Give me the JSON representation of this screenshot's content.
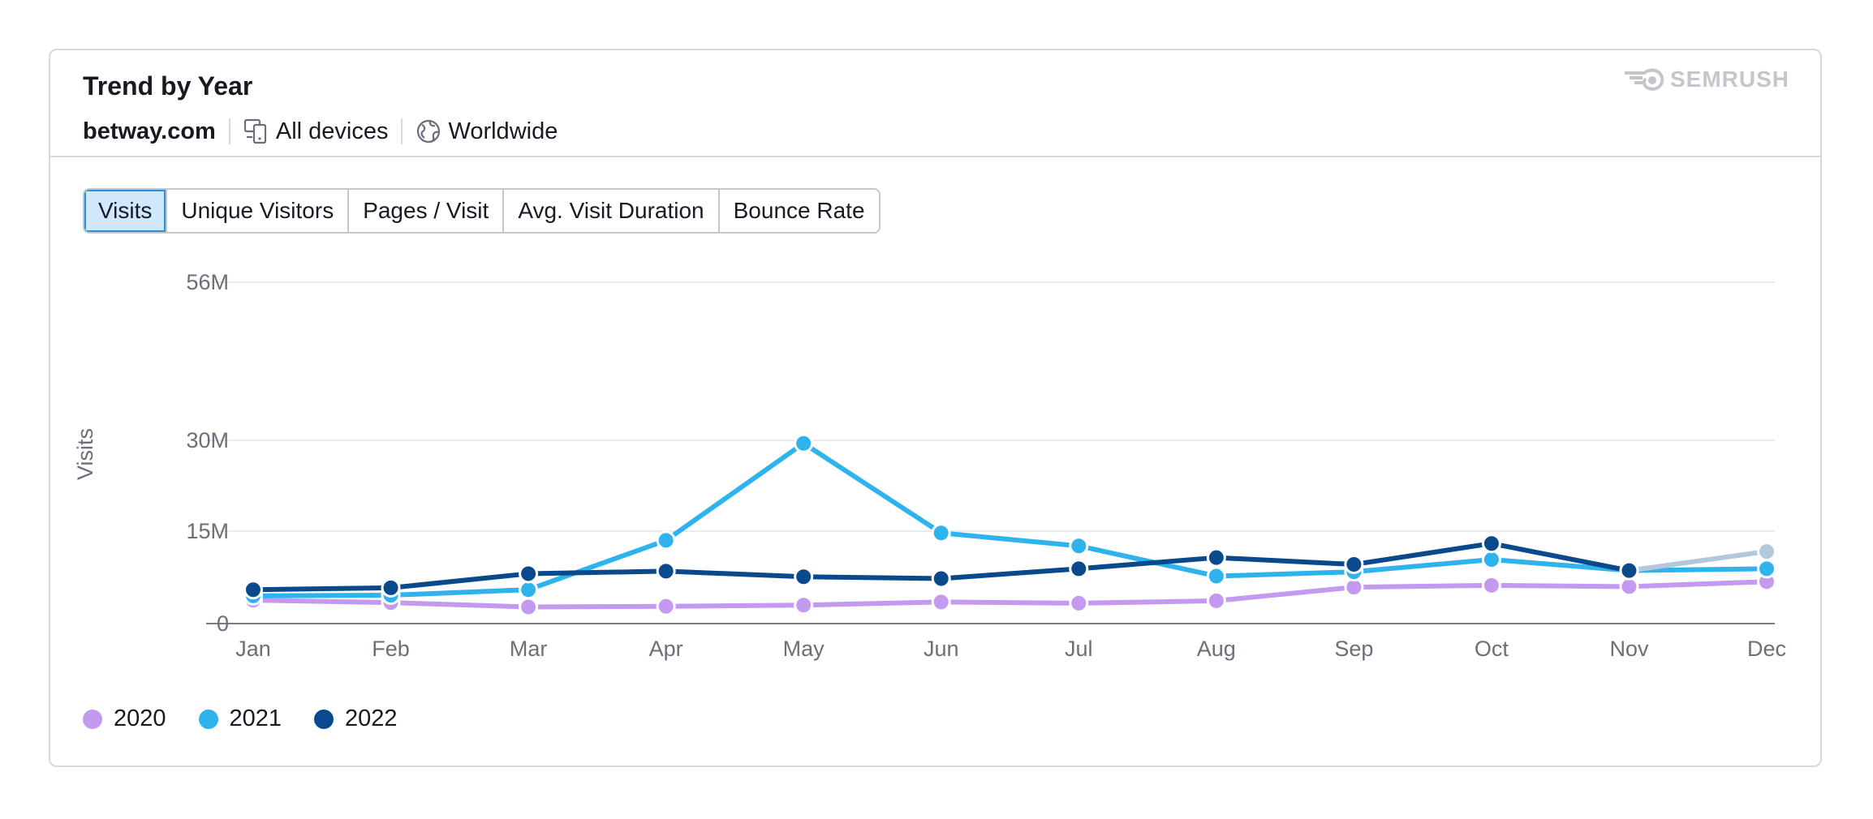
{
  "header": {
    "title": "Trend by Year",
    "domain": "betway.com",
    "devices": "All devices",
    "location": "Worldwide",
    "logo_text": "SEMRUSH"
  },
  "tabs": [
    {
      "label": "Visits",
      "active": true
    },
    {
      "label": "Unique Visitors",
      "active": false
    },
    {
      "label": "Pages / Visit",
      "active": false
    },
    {
      "label": "Avg. Visit Duration",
      "active": false
    },
    {
      "label": "Bounce Rate",
      "active": false
    }
  ],
  "chart_data": {
    "type": "line",
    "ylabel": "Visits",
    "xlabel": "",
    "categories": [
      "Jan",
      "Feb",
      "Mar",
      "Apr",
      "May",
      "Jun",
      "Jul",
      "Aug",
      "Sep",
      "Oct",
      "Nov",
      "Dec"
    ],
    "y_ticks": [
      {
        "value": 0,
        "label": "0"
      },
      {
        "value": 15000000,
        "label": "15M"
      },
      {
        "value": 30000000,
        "label": "30M"
      },
      {
        "value": 56000000,
        "label": "56M"
      }
    ],
    "ylim": [
      0,
      56000000
    ],
    "grid": true,
    "legend_position": "bottom-left",
    "series": [
      {
        "name": "2020",
        "color": "#c39af0",
        "values": [
          3800000,
          3400000,
          2700000,
          2800000,
          3000000,
          3500000,
          3300000,
          3700000,
          5900000,
          6200000,
          6000000,
          6800000
        ]
      },
      {
        "name": "2021",
        "color": "#2fb3ec",
        "values": [
          4500000,
          4600000,
          5500000,
          13500000,
          29500000,
          14700000,
          12600000,
          7700000,
          8400000,
          10400000,
          8600000,
          8900000
        ]
      },
      {
        "name": "2022",
        "color": "#0a4a8c",
        "partial_color": "#b4c8dc",
        "values": [
          5500000,
          5800000,
          8100000,
          8500000,
          7600000,
          7300000,
          8900000,
          10700000,
          9600000,
          13000000,
          8600000,
          11700000
        ]
      }
    ]
  }
}
